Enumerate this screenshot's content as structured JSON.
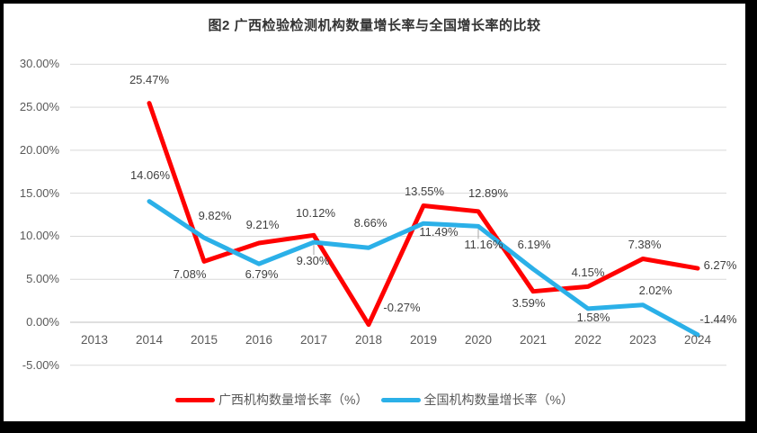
{
  "chart_data": {
    "type": "line",
    "title": "图2 广西检验检测机构数量增长率与全国增长率的比较",
    "categories": [
      "2013",
      "2014",
      "2015",
      "2016",
      "2017",
      "2018",
      "2019",
      "2020",
      "2021",
      "2022",
      "2023",
      "2024"
    ],
    "series": [
      {
        "name": "广西机构数量增长率（%）",
        "color": "#ff0000",
        "values": [
          null,
          25.47,
          7.08,
          9.21,
          10.12,
          -0.27,
          13.55,
          12.89,
          3.59,
          4.15,
          7.38,
          6.27
        ],
        "data_labels": [
          "25.47%",
          "7.08%",
          "9.21%",
          "10.12%",
          "-0.27%",
          "13.55%",
          "12.89%",
          "3.59%",
          "4.15%",
          "7.38%",
          "6.27%"
        ]
      },
      {
        "name": "全国机构数量增长率（%）",
        "color": "#2bb0e8",
        "values": [
          null,
          14.06,
          9.82,
          6.79,
          9.3,
          8.66,
          11.49,
          11.16,
          6.19,
          1.58,
          2.02,
          -1.44
        ],
        "data_labels": [
          "14.06%",
          "9.82%",
          "6.79%",
          "9.30%",
          "8.66%",
          "11.49%",
          "11.16%",
          "6.19%",
          "1.58%",
          "2.02%",
          "-1.44%"
        ]
      }
    ],
    "y_ticks": [
      "30.00%",
      "25.00%",
      "20.00%",
      "15.00%",
      "10.00%",
      "5.00%",
      "0.00%",
      "-5.00%"
    ],
    "y_tick_values": [
      30,
      25,
      20,
      15,
      10,
      5,
      0,
      -5
    ],
    "ylim": [
      -5,
      30
    ],
    "xlabel": "",
    "ylabel": "",
    "grid": true,
    "legend_position": "bottom",
    "colors": {
      "gridline": "#d9d9d9",
      "axis_line": "#bfbfbf",
      "tick_text": "#595959",
      "label_text": "#404040",
      "title_text": "#333333",
      "frame": "#000000",
      "background": "#ffffff"
    }
  }
}
